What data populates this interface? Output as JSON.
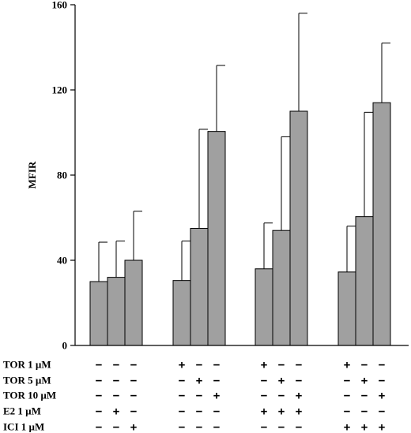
{
  "chart_data": {
    "type": "bar",
    "ylabel": "MFIR",
    "ylim": [
      0,
      160
    ],
    "yticks": [
      "0",
      "40",
      "80",
      "120",
      "160"
    ],
    "grid": false,
    "bar_color": "#a0a0a0",
    "groups": [
      {
        "bars": [
          {
            "value": 30,
            "error": 18.5
          },
          {
            "value": 32,
            "error": 17
          },
          {
            "value": 40,
            "error": 23
          }
        ]
      },
      {
        "bars": [
          {
            "value": 30.5,
            "error": 18.5
          },
          {
            "value": 55,
            "error": 46.5
          },
          {
            "value": 100.5,
            "error": 31
          }
        ]
      },
      {
        "bars": [
          {
            "value": 36,
            "error": 21.5
          },
          {
            "value": 54,
            "error": 44
          },
          {
            "value": 110,
            "error": 46
          }
        ]
      },
      {
        "bars": [
          {
            "value": 34.5,
            "error": 21.5
          },
          {
            "value": 60.5,
            "error": 49
          },
          {
            "value": 114,
            "error": 28
          }
        ]
      }
    ],
    "treatments": [
      {
        "label": "TOR 1 µM",
        "signs": [
          "−",
          "−",
          "−",
          "+",
          "−",
          "−",
          "+",
          "−",
          "−",
          "+",
          "−",
          "−"
        ]
      },
      {
        "label": "TOR 5 µM",
        "signs": [
          "−",
          "−",
          "−",
          "−",
          "+",
          "−",
          "−",
          "+",
          "−",
          "−",
          "+",
          "−"
        ]
      },
      {
        "label": "TOR 10 µM",
        "signs": [
          "−",
          "−",
          "−",
          "−",
          "−",
          "+",
          "−",
          "−",
          "+",
          "−",
          "−",
          "+"
        ]
      },
      {
        "label": "E2 1 µM",
        "signs": [
          "−",
          "+",
          "−",
          "−",
          "−",
          "−",
          "+",
          "+",
          "+",
          "−",
          "−",
          "−"
        ]
      },
      {
        "label": "ICI 1 µM",
        "signs": [
          "−",
          "−",
          "+",
          "−",
          "−",
          "−",
          "−",
          "−",
          "−",
          "+",
          "+",
          "+"
        ]
      }
    ]
  }
}
